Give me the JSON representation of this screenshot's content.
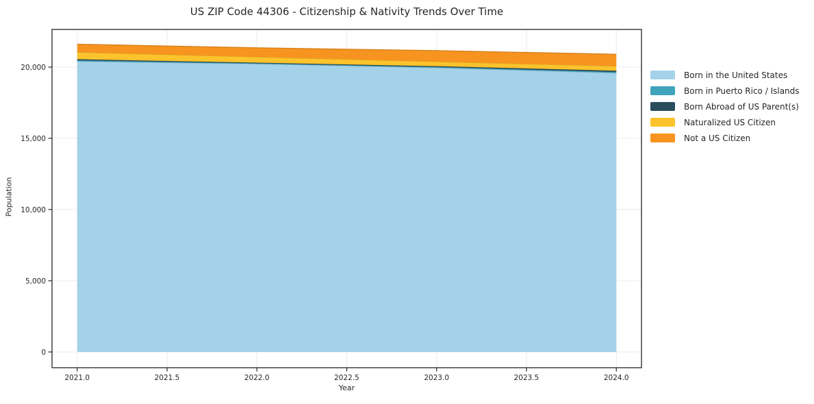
{
  "chart": {
    "title": "US ZIP Code 44306 - Citizenship & Nativity Trends Over Time",
    "xlabel": "Year",
    "ylabel": "Population"
  },
  "chart_data": {
    "type": "area",
    "stacked": true,
    "title": "US ZIP Code 44306 - Citizenship & Nativity Trends Over Time",
    "xlabel": "Year",
    "ylabel": "Population",
    "x": [
      2021,
      2022,
      2023,
      2024
    ],
    "series": [
      {
        "name": "Born in the United States",
        "color": "#A4D2E8",
        "values": [
          20410,
          20230,
          19955,
          19585
        ]
      },
      {
        "name": "Born in Puerto Rico / Islands",
        "color": "#3FA3BB",
        "values": [
          70,
          40,
          55,
          80
        ]
      },
      {
        "name": "Born Abroad of US Parent(s)",
        "color": "#2C4D5E",
        "values": [
          75,
          40,
          55,
          80
        ]
      },
      {
        "name": "Naturalized US Citizen",
        "color": "#FCC32C",
        "values": [
          490,
          405,
          320,
          320
        ]
      },
      {
        "name": "Not a US Citizen",
        "color": "#F79420",
        "values": [
          560,
          640,
          770,
          835
        ]
      }
    ],
    "x_tick_labels": [
      "2021.0",
      "2021.5",
      "2022.0",
      "2022.5",
      "2023.0",
      "2023.5",
      "2024.0"
    ],
    "x_tick_values": [
      2021,
      2021.5,
      2022,
      2022.5,
      2023,
      2023.5,
      2024
    ],
    "y_tick_labels": [
      "0",
      "5,000",
      "10,000",
      "15,000",
      "20,000"
    ],
    "y_tick_values": [
      0,
      5000,
      10000,
      15000,
      20000
    ],
    "xlim": [
      2020.86,
      2024.14
    ],
    "ylim": [
      -1106,
      22644
    ],
    "grid": true,
    "legend_position": "right"
  }
}
